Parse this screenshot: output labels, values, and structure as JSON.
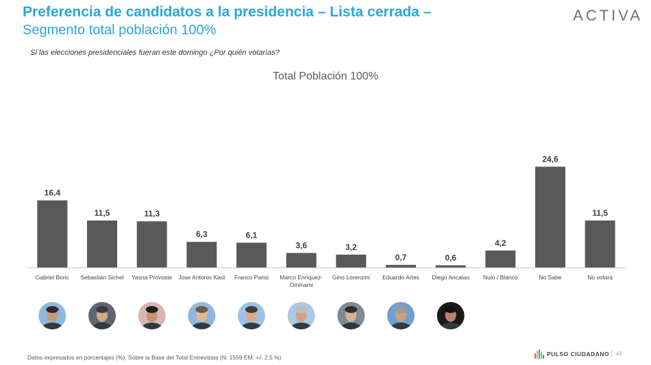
{
  "header": {
    "title_line1": "Preferencia de candidatos a la presidencia – Lista cerrada –",
    "title_line2": "Segmento total población 100%",
    "brand": "ACTIVA",
    "question": "Si las elecciones presidenciales fueran este domingo ¿Por quién votarías?"
  },
  "chart_data": {
    "type": "bar",
    "title": "Total Población 100%",
    "categories": [
      "Gabriel Boric",
      "Sebastián Sichel",
      "Yasna Provoste",
      "Jose Antonio Kast",
      "Franco Parisi",
      "Marco Enríquez-Ominami",
      "Gino Lorenzini",
      "Eduardo Artes",
      "Diego Ancalao",
      "Nulo / Blanco",
      "No Sabe",
      "No votará"
    ],
    "values": [
      16.4,
      11.5,
      11.3,
      6.3,
      6.1,
      3.6,
      3.2,
      0.7,
      0.6,
      4.2,
      24.6,
      11.5
    ],
    "value_labels": [
      "16,4",
      "11,5",
      "11,3",
      "6,3",
      "6,1",
      "3,6",
      "3,2",
      "0,7",
      "0,6",
      "4,2",
      "24,6",
      "11,5"
    ],
    "bar_color": "#595959",
    "grid": false,
    "legend": "none"
  },
  "portraits": [
    {
      "name": "Gabriel Boric",
      "icon": "person-portrait-icon",
      "bg": "#8fb8dd",
      "skin": "#c49a7a",
      "hair": "#2a2a2a"
    },
    {
      "name": "Sebastián Sichel",
      "icon": "person-portrait-icon",
      "bg": "#5d6670",
      "skin": "#d1a88a",
      "hair": "#3a3a3a"
    },
    {
      "name": "Yasna Provoste",
      "icon": "person-portrait-icon",
      "bg": "#d9b6b6",
      "skin": "#c8906e",
      "hair": "#1f1f1f"
    },
    {
      "name": "Jose Antonio Kast",
      "icon": "person-portrait-icon",
      "bg": "#8fb8dd",
      "skin": "#e0b99a",
      "hair": "#6b5a4a"
    },
    {
      "name": "Franco Parisi",
      "icon": "person-portrait-icon",
      "bg": "#9cc2e3",
      "skin": "#d6ac8c",
      "hair": "#3d3d3d"
    },
    {
      "name": "Marco Enríquez-Ominami",
      "icon": "person-portrait-icon",
      "bg": "#a9c9e6",
      "skin": "#cfa384",
      "hair": "#bcbcbc"
    },
    {
      "name": "Gino Lorenzini",
      "icon": "person-portrait-icon",
      "bg": "#7f8a93",
      "skin": "#d8b091",
      "hair": "#2e2e2e"
    },
    {
      "name": "Eduardo Artes",
      "icon": "person-portrait-icon",
      "bg": "#6fa0cf",
      "skin": "#cf9e7e",
      "hair": "#9a9a9a"
    },
    {
      "name": "Diego Ancalao",
      "icon": "person-portrait-icon",
      "bg": "#1a1a1a",
      "skin": "#b8866a",
      "hair": "#111111"
    }
  ],
  "footer": {
    "note": "Datos expresados en porcentajes (%). Sobre la Base del Total Entrevistas (N: 1559  EM: +/- 2,5 %)",
    "logo_text": "PULSO CIUDADANO",
    "page": "41",
    "logo_colors": [
      "#e94e77",
      "#f5a623",
      "#2aa7d8",
      "#7ac143",
      "#9b59b6"
    ]
  }
}
